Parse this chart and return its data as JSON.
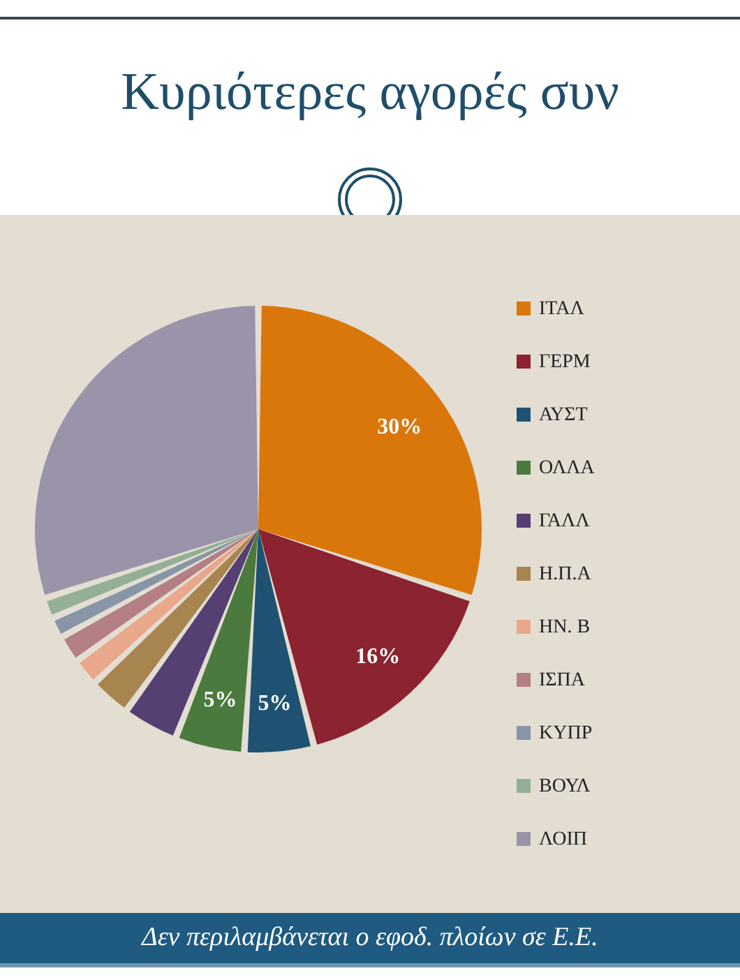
{
  "chart_data": {
    "type": "pie",
    "title": "Κυριότερες αγορές συν",
    "categories": [
      "ΙΤΑΛ",
      "ΓΕΡΜ",
      "ΑΥΣΤ",
      "ΟΛΛΑ",
      "ΓΑΛΛ",
      "Η.Π.Α",
      "ΗΝ. Β",
      "ΙΣΠΑ",
      "ΚΥΠΡ",
      "ΒΟΥΛ",
      "ΛΟΙΠ"
    ],
    "values": [
      30,
      16,
      5,
      5,
      4,
      3,
      2,
      2,
      1.5,
      1.5,
      30
    ],
    "colors": [
      "#d9770a",
      "#8c2330",
      "#1f5272",
      "#4a7a3e",
      "#553f73",
      "#a8844e",
      "#e8a889",
      "#b37f85",
      "#8795a6",
      "#93b096",
      "#9a93aa"
    ],
    "value_labels": [
      "30%",
      "16%",
      "5%",
      "5%",
      null,
      null,
      null,
      null,
      null,
      null,
      null
    ],
    "legend": "right",
    "annotations": [
      "Δεν περιλαμβάνεται ο εφοδ. πλοίων σε Ε.Ε."
    ]
  }
}
